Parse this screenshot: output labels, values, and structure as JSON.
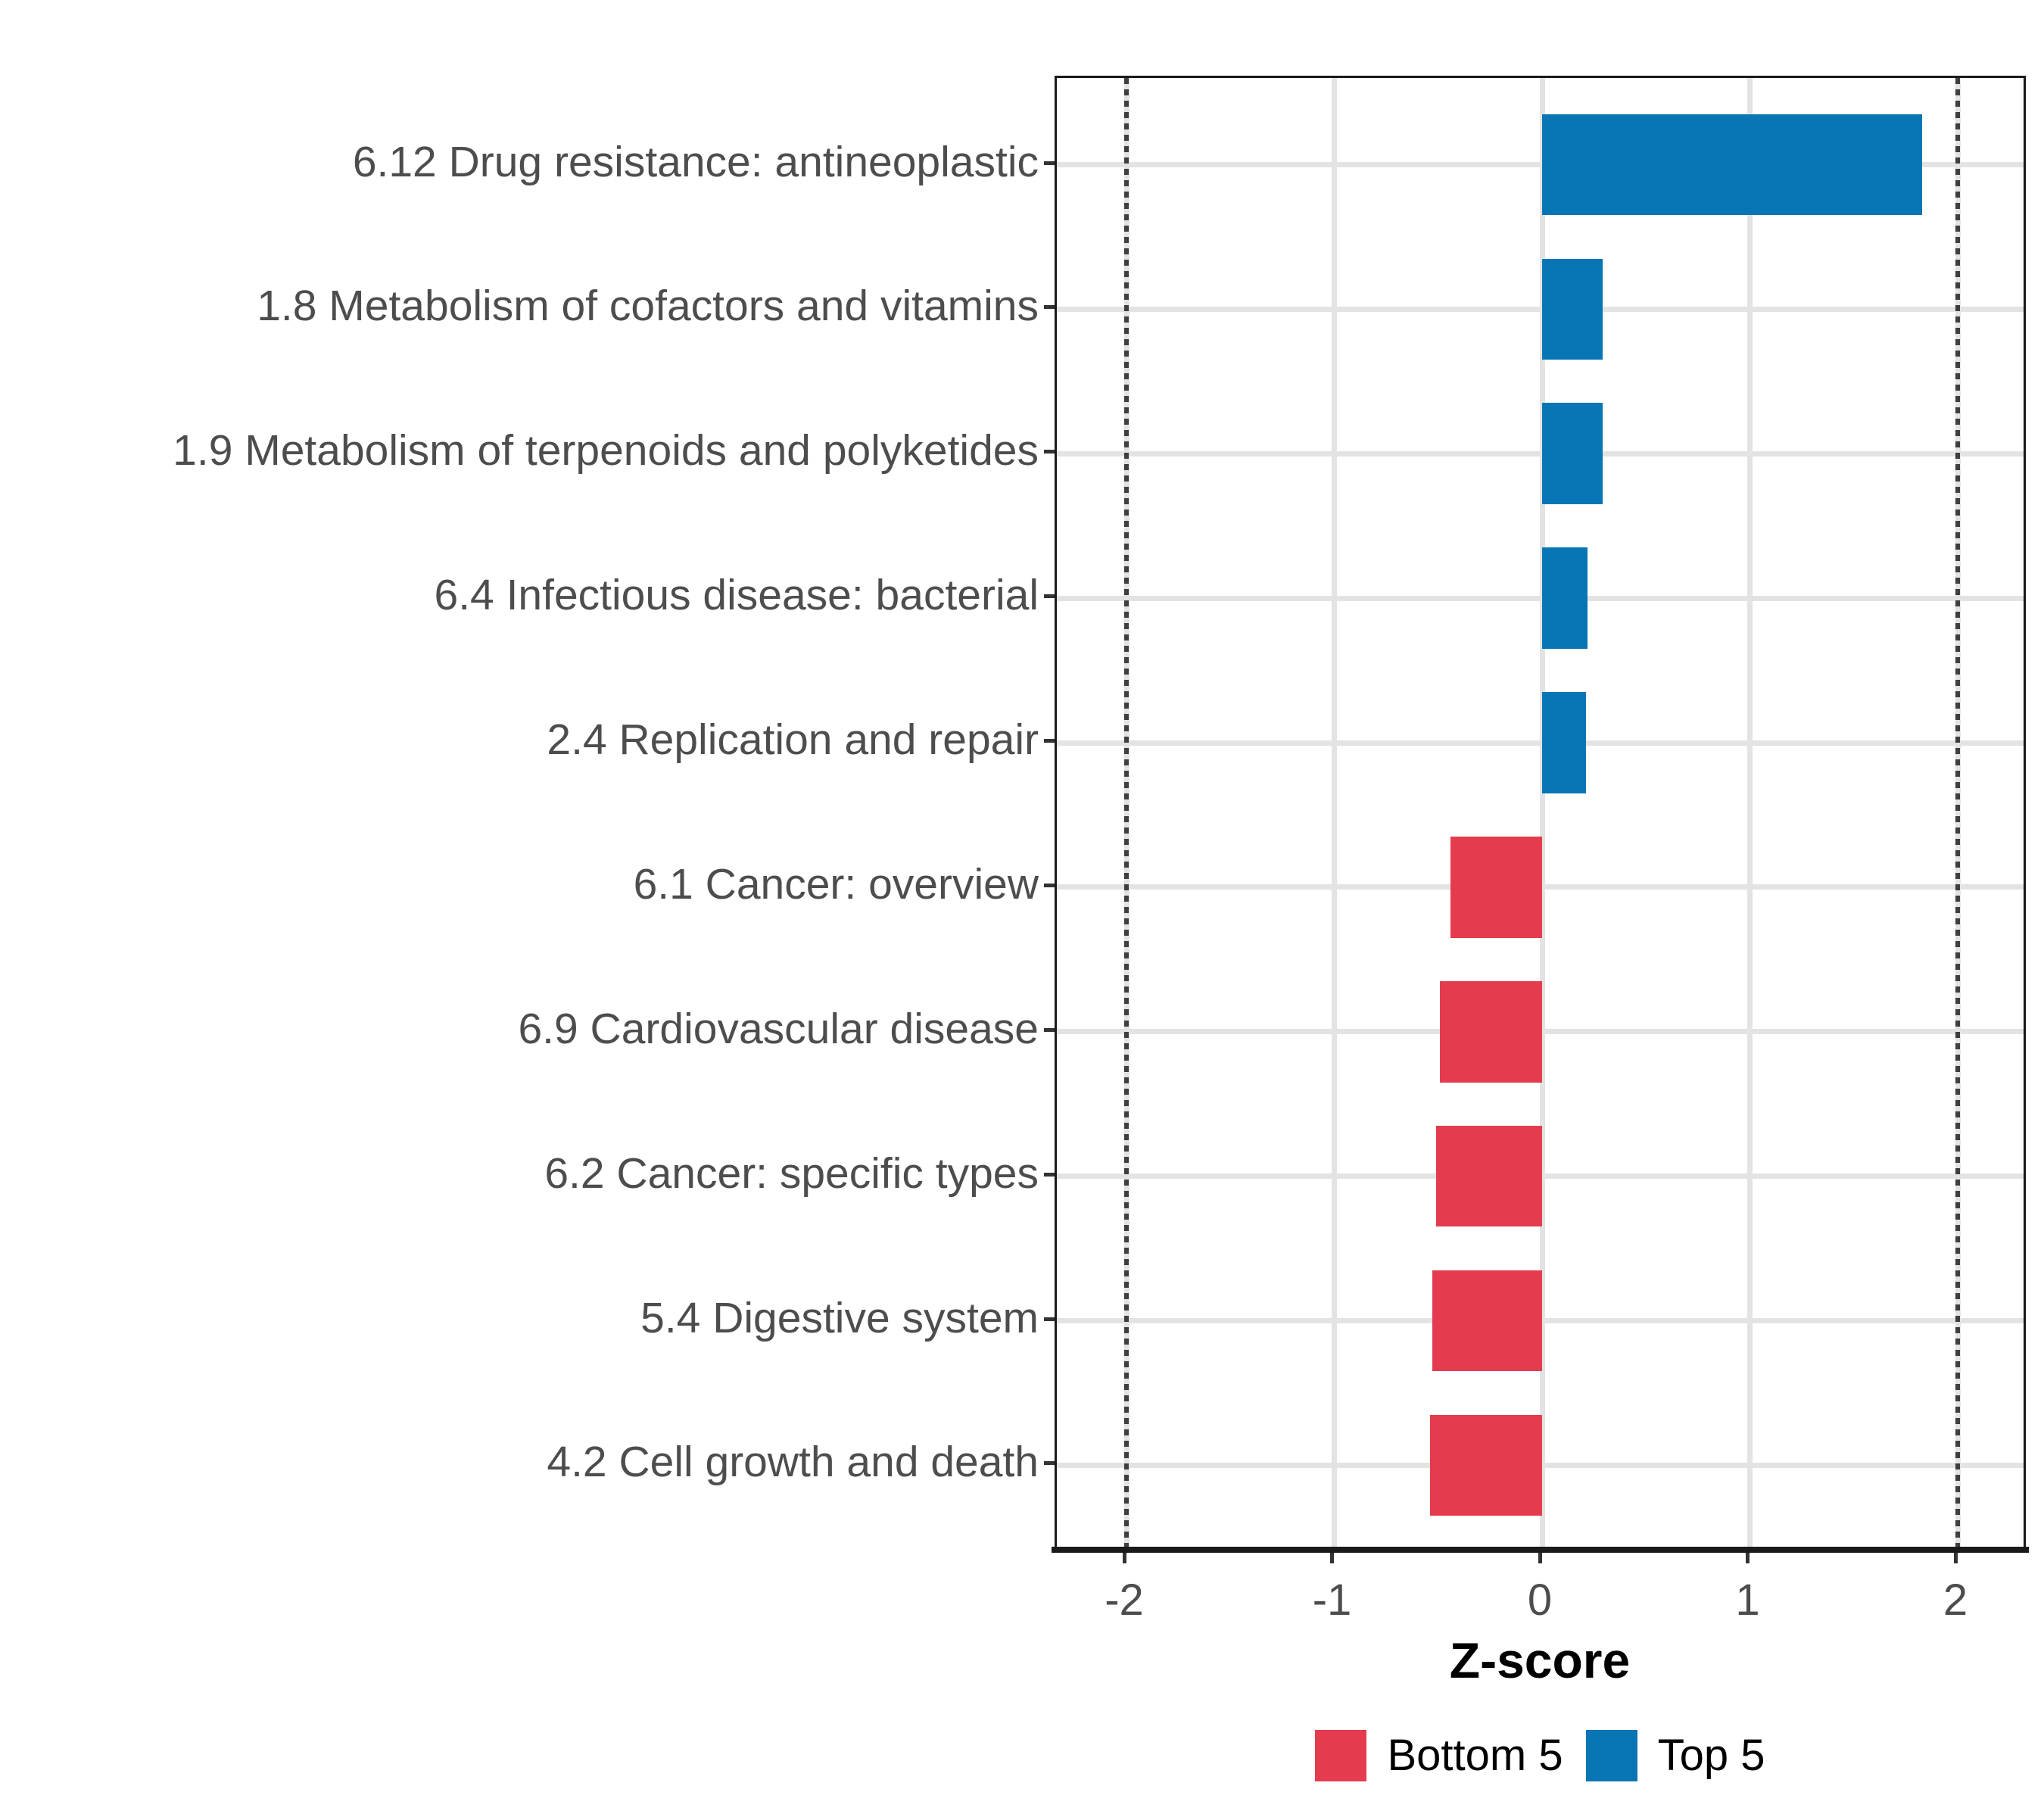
{
  "chart_data": {
    "type": "bar",
    "orientation": "horizontal",
    "title": "",
    "xlabel": "Z-score",
    "ylabel": "",
    "categories": [
      "6.12 Drug resistance: antineoplastic",
      "1.8 Metabolism of cofactors and vitamins",
      "1.9 Metabolism of terpenoids and polyketides",
      "6.4 Infectious disease: bacterial",
      "2.4 Replication and repair",
      "6.1 Cancer: overview",
      "6.9 Cardiovascular disease",
      "6.2 Cancer: specific types",
      "5.4 Digestive system",
      "4.2 Cell growth and death"
    ],
    "values": [
      1.83,
      0.29,
      0.29,
      0.22,
      0.21,
      -0.44,
      -0.49,
      -0.51,
      -0.53,
      -0.54
    ],
    "groups": [
      "Top 5",
      "Top 5",
      "Top 5",
      "Top 5",
      "Top 5",
      "Bottom 5",
      "Bottom 5",
      "Bottom 5",
      "Bottom 5",
      "Bottom 5"
    ],
    "x_ticks": [
      "-2",
      "-1",
      "0",
      "1",
      "2"
    ],
    "x_tick_values": [
      -2,
      -1,
      0,
      1,
      2
    ],
    "xlim": [
      -2.34,
      2.34
    ],
    "reference_lines": [
      -2,
      2
    ],
    "grid": "major",
    "legend_position": "bottom",
    "legend": [
      {
        "label": "Bottom 5",
        "color": "#E43C4E"
      },
      {
        "label": "Top 5",
        "color": "#0875B4"
      }
    ]
  },
  "colors": {
    "top5": "#0875B4",
    "bottom5": "#E43C4E",
    "gridline": "#e3e3e3",
    "reference_line": "#3f3f3f",
    "axis_text": "#4d4d4d",
    "axis_title": "#000000",
    "panel_border": "#1a1a1a",
    "background": "#ffffff"
  }
}
